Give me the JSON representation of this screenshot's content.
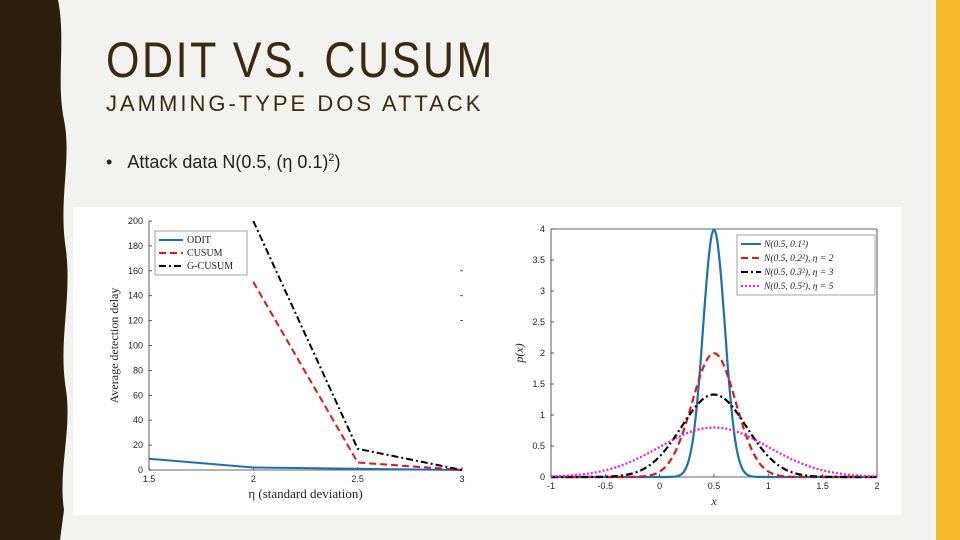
{
  "slide": {
    "title": "ODIT VS. CUSUM",
    "subtitle": "JAMMING-TYPE DOS ATTACK",
    "bullet": "•",
    "bullet_text": "Attack data N(0.5, (η 0.1)",
    "bullet_sup": "2",
    "bullet_close": ")",
    "accent_color": "#f7b82c",
    "border_color": "#2d1e0c"
  },
  "chart_data": [
    {
      "type": "line",
      "xlabel": "η (standard deviation)",
      "ylabel": "Average detection delay",
      "xlim": [
        1.5,
        3
      ],
      "ylim": [
        0,
        200
      ],
      "x_ticks": [
        "1.5",
        "2",
        "2.5",
        "3"
      ],
      "y_ticks": [
        "0",
        "20",
        "40",
        "60",
        "80",
        "100",
        "120",
        "140",
        "160",
        "180",
        "200"
      ],
      "grid": false,
      "legend_position": "top-left",
      "series": [
        {
          "name": "ODIT",
          "color": "#1f6fb0",
          "dash": "solid",
          "x": [
            1.5,
            2,
            2.5,
            3
          ],
          "y": [
            9,
            2,
            1,
            0
          ]
        },
        {
          "name": "CUSUM",
          "color": "#d7191c",
          "dash": "dashed",
          "x": [
            2,
            2.5,
            3
          ],
          "y": [
            151,
            6,
            0
          ]
        },
        {
          "name": "G-CUSUM",
          "color": "#000000",
          "dash": "dashdot",
          "x": [
            2,
            2.5,
            3
          ],
          "y": [
            200,
            17,
            0
          ]
        }
      ]
    },
    {
      "type": "line",
      "xlabel": "x",
      "ylabel": "p(x)",
      "xlim": [
        -1,
        2
      ],
      "ylim": [
        0,
        4
      ],
      "x_ticks": [
        "-1",
        "-0.5",
        "0",
        "0.5",
        "1",
        "1.5",
        "2"
      ],
      "y_ticks": [
        "0",
        "0.5",
        "1",
        "1.5",
        "2",
        "2.5",
        "3",
        "3.5",
        "4"
      ],
      "grid": false,
      "legend_position": "top-right",
      "series": [
        {
          "name": "N(0.5, 0.1²)",
          "color": "#1f6fb0",
          "dash": "solid",
          "mean": 0.5,
          "sd": 0.1
        },
        {
          "name": "N(0.5, 0.2²), η = 2",
          "color": "#d7191c",
          "dash": "dashed",
          "mean": 0.5,
          "sd": 0.2
        },
        {
          "name": "N(0.5, 0.3²), η = 3",
          "color": "#000000",
          "dash": "dashdot",
          "mean": 0.5,
          "sd": 0.3
        },
        {
          "name": "N(0.5, 0.5²), η = 5",
          "color": "#e020e0",
          "dash": "dotted",
          "mean": 0.5,
          "sd": 0.5
        }
      ]
    }
  ]
}
